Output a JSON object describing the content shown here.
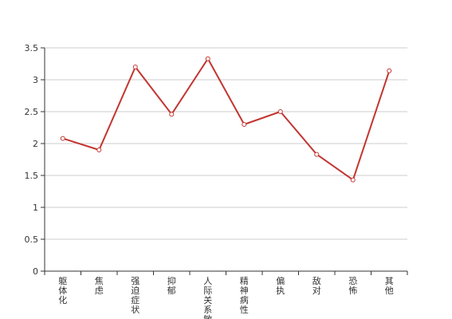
{
  "chart_data": {
    "type": "line",
    "title": "",
    "xlabel": "",
    "ylabel": "",
    "categories": [
      "躯体化",
      "焦虑",
      "强迫症状",
      "抑郁",
      "人际关系敏感",
      "精神病性",
      "偏执",
      "敌对",
      "恐怖",
      "其他"
    ],
    "series": [
      {
        "values": [
          2.08,
          1.9,
          3.2,
          2.46,
          3.33,
          2.3,
          2.5,
          1.83,
          1.43,
          3.14
        ]
      }
    ],
    "ylim": [
      0,
      3.5
    ],
    "yticks": [
      "0",
      "0.5",
      "1",
      "1.5",
      "2",
      "2.5",
      "3",
      "3.5"
    ],
    "grid": true,
    "legend": "none",
    "colors": {
      "line": "#c23531",
      "grid": "#cccccc",
      "axis": "#333333",
      "marker_fill": "#ffffff"
    }
  }
}
